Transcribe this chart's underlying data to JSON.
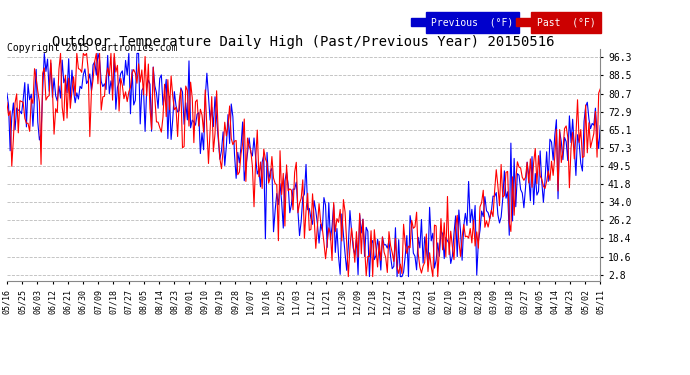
{
  "title": "Outdoor Temperature Daily High (Past/Previous Year) 20150516",
  "copyright": "Copyright 2015 Cartronics.com",
  "yticks": [
    2.8,
    10.6,
    18.4,
    26.2,
    34.0,
    41.8,
    49.5,
    57.3,
    65.1,
    72.9,
    80.7,
    88.5,
    96.3
  ],
  "ylim": [
    0,
    100
  ],
  "background_color": "#ffffff",
  "plot_bg_color": "#ffffff",
  "grid_color": "#bbbbbb",
  "legend_labels": [
    "Previous  (°F)",
    "Past  (°F)"
  ],
  "title_fontsize": 10,
  "copyright_fontsize": 7,
  "line_width": 0.8,
  "x_labels": [
    "05/16",
    "05/25",
    "06/03",
    "06/12",
    "06/21",
    "06/30",
    "07/09",
    "07/18",
    "07/27",
    "08/05",
    "08/14",
    "08/23",
    "09/01",
    "09/10",
    "09/19",
    "09/28",
    "10/07",
    "10/16",
    "10/25",
    "11/03",
    "11/12",
    "11/21",
    "11/30",
    "12/09",
    "12/18",
    "12/27",
    "01/14",
    "01/23",
    "02/01",
    "02/10",
    "02/19",
    "02/28",
    "03/09",
    "03/18",
    "03/27",
    "04/05",
    "04/14",
    "04/23",
    "05/02",
    "05/11"
  ]
}
